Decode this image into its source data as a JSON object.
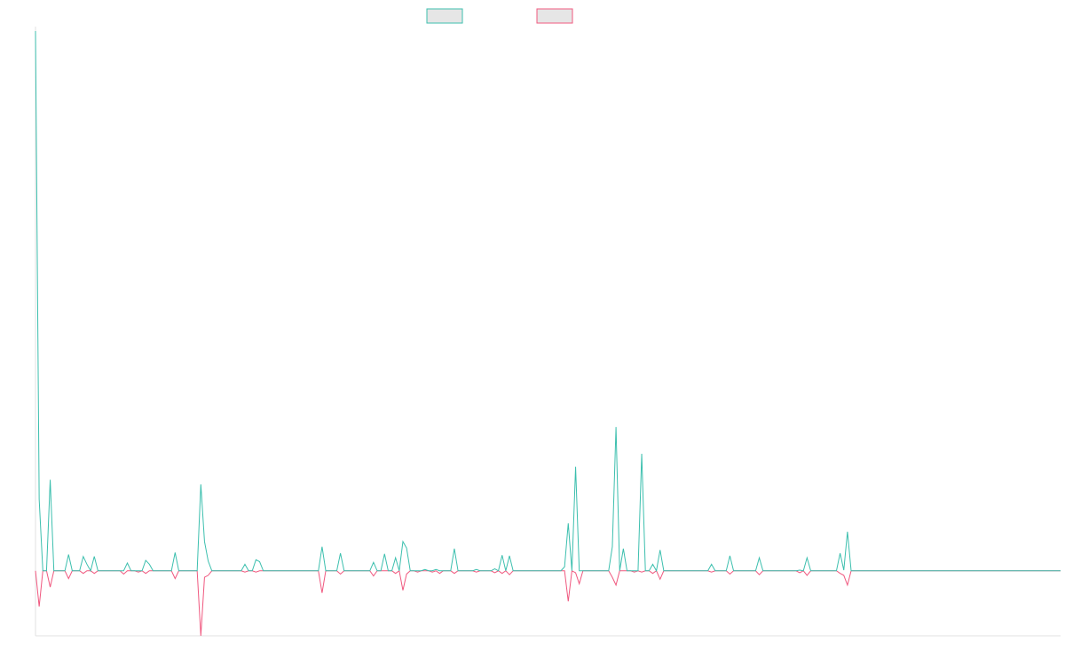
{
  "chart_data": {
    "type": "line",
    "title": "",
    "xlabel": "",
    "ylabel": "",
    "grid": false,
    "legend_placement": "top-center",
    "n_points": 280,
    "baseline_value": 0,
    "ylim": [
      -1,
      8.3
    ],
    "series": [
      {
        "color": "#3cbfae",
        "spikes": [
          [
            0,
            8.3
          ],
          [
            1,
            1.1
          ],
          [
            4,
            1.4
          ],
          [
            9,
            0.25
          ],
          [
            13,
            0.22
          ],
          [
            14,
            0.1
          ],
          [
            16,
            0.22
          ],
          [
            25,
            0.12
          ],
          [
            30,
            0.16
          ],
          [
            31,
            0.1
          ],
          [
            38,
            0.28
          ],
          [
            45,
            1.33
          ],
          [
            46,
            0.45
          ],
          [
            47,
            0.15
          ],
          [
            57,
            0.1
          ],
          [
            60,
            0.17
          ],
          [
            61,
            0.14
          ],
          [
            78,
            0.37
          ],
          [
            83,
            0.27
          ],
          [
            92,
            0.13
          ],
          [
            95,
            0.26
          ],
          [
            98,
            0.2
          ],
          [
            100,
            0.45
          ],
          [
            101,
            0.35
          ],
          [
            106,
            0.02
          ],
          [
            109,
            0.02
          ],
          [
            114,
            0.34
          ],
          [
            120,
            0.02
          ],
          [
            125,
            0.03
          ],
          [
            127,
            0.24
          ],
          [
            129,
            0.23
          ],
          [
            144,
            0.06
          ],
          [
            145,
            0.73
          ],
          [
            147,
            1.6
          ],
          [
            157,
            0.37
          ],
          [
            158,
            2.21
          ],
          [
            160,
            0.34
          ],
          [
            165,
            1.8
          ],
          [
            168,
            0.1
          ],
          [
            170,
            0.32
          ],
          [
            184,
            0.1
          ],
          [
            189,
            0.23
          ],
          [
            197,
            0.2
          ],
          [
            208,
            0.01
          ],
          [
            210,
            0.2
          ],
          [
            219,
            0.27
          ],
          [
            220,
            0.01
          ],
          [
            221,
            0.6
          ]
        ]
      },
      {
        "color": "#f0587f",
        "spikes": [
          [
            1,
            -0.55
          ],
          [
            4,
            -0.25
          ],
          [
            9,
            -0.12
          ],
          [
            13,
            -0.04
          ],
          [
            16,
            -0.04
          ],
          [
            24,
            -0.05
          ],
          [
            28,
            -0.02
          ],
          [
            30,
            -0.04
          ],
          [
            38,
            -0.12
          ],
          [
            45,
            -1
          ],
          [
            46,
            -0.1
          ],
          [
            47,
            -0.07
          ],
          [
            57,
            -0.02
          ],
          [
            60,
            -0.02
          ],
          [
            78,
            -0.34
          ],
          [
            83,
            -0.05
          ],
          [
            92,
            -0.08
          ],
          [
            98,
            -0.04
          ],
          [
            100,
            -0.3
          ],
          [
            101,
            -0.05
          ],
          [
            104,
            -0.02
          ],
          [
            108,
            -0.02
          ],
          [
            110,
            -0.04
          ],
          [
            114,
            -0.04
          ],
          [
            120,
            -0.02
          ],
          [
            125,
            -0.03
          ],
          [
            127,
            -0.04
          ],
          [
            129,
            -0.06
          ],
          [
            145,
            -0.47
          ],
          [
            147,
            -0.03
          ],
          [
            148,
            -0.2
          ],
          [
            157,
            -0.1
          ],
          [
            158,
            -0.22
          ],
          [
            163,
            -0.02
          ],
          [
            165,
            -0.02
          ],
          [
            168,
            -0.04
          ],
          [
            170,
            -0.13
          ],
          [
            184,
            -0.02
          ],
          [
            189,
            -0.05
          ],
          [
            197,
            -0.06
          ],
          [
            208,
            -0.03
          ],
          [
            210,
            -0.07
          ],
          [
            219,
            -0.04
          ],
          [
            220,
            -0.07
          ],
          [
            221,
            -0.22
          ]
        ]
      }
    ]
  }
}
